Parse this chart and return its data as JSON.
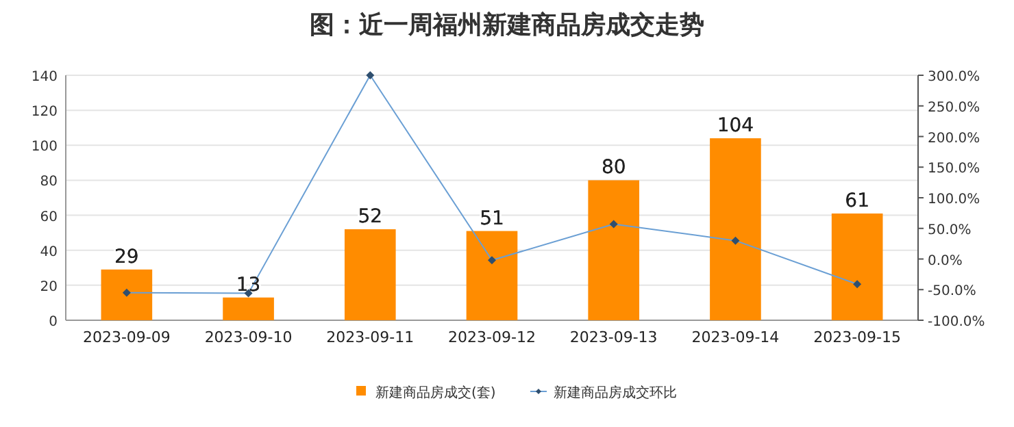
{
  "chart_data": {
    "type": "bar",
    "title": "图：近一周福州新建商品房成交走势",
    "categories": [
      "2023-09-09",
      "2023-09-10",
      "2023-09-11",
      "2023-09-12",
      "2023-09-13",
      "2023-09-14",
      "2023-09-15"
    ],
    "series": [
      {
        "name": "新建商品房成交(套)",
        "color": "#ff8c00",
        "values": [
          29,
          13,
          52,
          51,
          80,
          104,
          61
        ],
        "value_labels": [
          "29",
          "13",
          "52",
          "51",
          "80",
          "104",
          "61"
        ]
      },
      {
        "name": "新建商品房成交环比",
        "type": "line",
        "axis": "y2",
        "color": "#6a9fd4",
        "marker": "diamond",
        "values": [
          -55,
          -56,
          300,
          -2,
          57,
          30,
          -41
        ]
      }
    ],
    "ylim": [
      0,
      140
    ],
    "yticks": [
      0,
      20,
      40,
      60,
      80,
      100,
      120,
      140
    ],
    "y2lim": [
      -100,
      300
    ],
    "y2ticks": [
      {
        "value": -100,
        "label": "-100.0%"
      },
      {
        "value": -50,
        "label": "-50.0%"
      },
      {
        "value": 0,
        "label": "0.0%"
      },
      {
        "value": 50,
        "label": "50.0%"
      },
      {
        "value": 100,
        "label": "100.0%"
      },
      {
        "value": 150,
        "label": "150.0%"
      },
      {
        "value": 200,
        "label": "200.0%"
      },
      {
        "value": 250,
        "label": "250.0%"
      },
      {
        "value": 300,
        "label": "300.0%"
      }
    ],
    "grid": "y",
    "legend": "bottom"
  }
}
